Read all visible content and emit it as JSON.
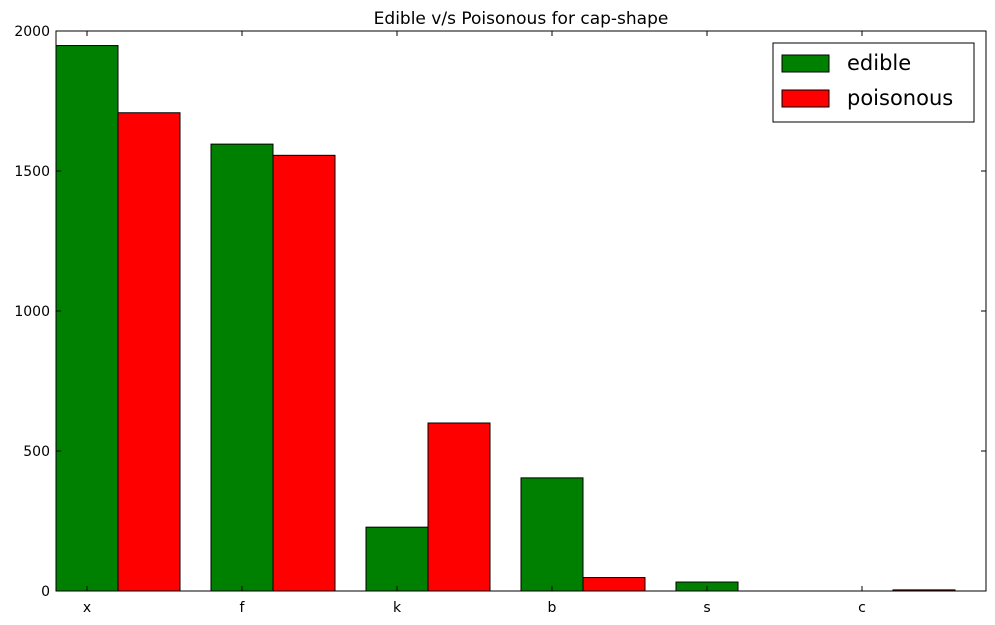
{
  "chart_data": {
    "type": "bar",
    "title": "Edible v/s Poisonous for cap-shape",
    "xlabel": "",
    "ylabel": "",
    "categories": [
      "x",
      "f",
      "k",
      "b",
      "s",
      "c"
    ],
    "series": [
      {
        "name": "edible",
        "color": "#008000",
        "values": [
          1948,
          1596,
          228,
          404,
          32,
          0
        ]
      },
      {
        "name": "poisonous",
        "color": "#ff0000",
        "values": [
          1708,
          1556,
          600,
          48,
          0,
          4
        ]
      }
    ],
    "ylim": [
      0,
      2000
    ],
    "yticks": [
      0,
      500,
      1000,
      1500,
      2000
    ],
    "yticklabels": [
      "0",
      "500",
      "1000",
      "1500",
      "2000"
    ],
    "grid": false,
    "legend_position": "top-right"
  }
}
